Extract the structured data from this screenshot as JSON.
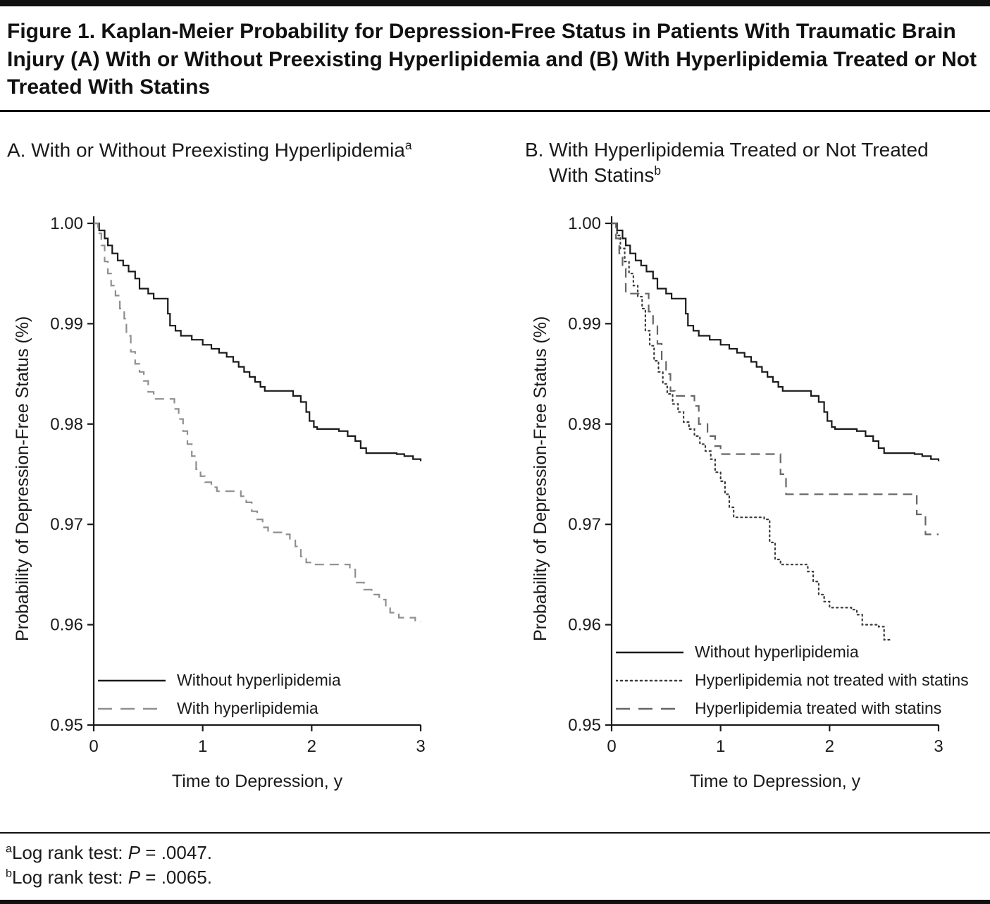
{
  "figure": {
    "title": "Figure 1. Kaplan-Meier Probability for Depression-Free Status in Patients With Traumatic Brain Injury (A) With or Without Preexisting Hyperlipidemia and (B) With Hyperlipidemia Treated or Not Treated With Statins"
  },
  "colors": {
    "ink": "#1a1a1a"
  },
  "chart_data": [
    {
      "type": "line",
      "subtype": "kaplan-meier-step",
      "title": "A. With or Without Preexisting Hyperlipidemia",
      "heading_line1": "A. With or Without Preexisting Hyperlipidemia",
      "heading_sup": "a",
      "xlabel": "Time to Depression, y",
      "ylabel": "Probability of Depression-Free Status (%)",
      "xlim": [
        0,
        3
      ],
      "ylim": [
        0.95,
        1.0
      ],
      "xticks": [
        0,
        1,
        2,
        3
      ],
      "yticks": [
        0.95,
        0.96,
        0.97,
        0.98,
        0.99,
        1.0
      ],
      "grid": false,
      "legend_position": "lower-left-inside",
      "series": [
        {
          "name": "Without hyperlipidemia",
          "style": "solid",
          "color": "#1a1a1a",
          "points": [
            [
              0,
              1.0
            ],
            [
              0.05,
              0.9993
            ],
            [
              0.1,
              0.9985
            ],
            [
              0.13,
              0.9978
            ],
            [
              0.17,
              0.997
            ],
            [
              0.22,
              0.9963
            ],
            [
              0.27,
              0.9958
            ],
            [
              0.32,
              0.9952
            ],
            [
              0.38,
              0.9945
            ],
            [
              0.42,
              0.9935
            ],
            [
              0.5,
              0.993
            ],
            [
              0.55,
              0.9925
            ],
            [
              0.65,
              0.9925
            ],
            [
              0.68,
              0.991
            ],
            [
              0.7,
              0.9898
            ],
            [
              0.75,
              0.9893
            ],
            [
              0.8,
              0.9888
            ],
            [
              0.9,
              0.9884
            ],
            [
              1.0,
              0.9879
            ],
            [
              1.08,
              0.9875
            ],
            [
              1.15,
              0.9871
            ],
            [
              1.22,
              0.9867
            ],
            [
              1.28,
              0.9862
            ],
            [
              1.33,
              0.9857
            ],
            [
              1.38,
              0.9852
            ],
            [
              1.43,
              0.9847
            ],
            [
              1.48,
              0.9842
            ],
            [
              1.53,
              0.9837
            ],
            [
              1.57,
              0.9833
            ],
            [
              1.78,
              0.9833
            ],
            [
              1.83,
              0.9828
            ],
            [
              1.9,
              0.9822
            ],
            [
              1.95,
              0.9812
            ],
            [
              1.98,
              0.9803
            ],
            [
              2.02,
              0.9797
            ],
            [
              2.05,
              0.9795
            ],
            [
              2.25,
              0.9793
            ],
            [
              2.33,
              0.9788
            ],
            [
              2.4,
              0.9783
            ],
            [
              2.45,
              0.9776
            ],
            [
              2.5,
              0.9771
            ],
            [
              2.78,
              0.977
            ],
            [
              2.85,
              0.9768
            ],
            [
              2.93,
              0.9765
            ],
            [
              3.0,
              0.9763
            ]
          ]
        },
        {
          "name": "With hyperlipidemia",
          "style": "dashed",
          "color": "#8f8f8f",
          "points": [
            [
              0,
              1.0
            ],
            [
              0.04,
              0.999
            ],
            [
              0.07,
              0.9978
            ],
            [
              0.1,
              0.9962
            ],
            [
              0.13,
              0.995
            ],
            [
              0.16,
              0.9938
            ],
            [
              0.2,
              0.9928
            ],
            [
              0.24,
              0.9915
            ],
            [
              0.28,
              0.9905
            ],
            [
              0.3,
              0.9888
            ],
            [
              0.34,
              0.9872
            ],
            [
              0.38,
              0.986
            ],
            [
              0.42,
              0.9852
            ],
            [
              0.46,
              0.9843
            ],
            [
              0.5,
              0.9832
            ],
            [
              0.55,
              0.9825
            ],
            [
              0.7,
              0.9825
            ],
            [
              0.74,
              0.9815
            ],
            [
              0.78,
              0.9805
            ],
            [
              0.82,
              0.9793
            ],
            [
              0.86,
              0.978
            ],
            [
              0.9,
              0.9768
            ],
            [
              0.94,
              0.9755
            ],
            [
              0.98,
              0.9748
            ],
            [
              1.02,
              0.9742
            ],
            [
              1.08,
              0.9737
            ],
            [
              1.13,
              0.9733
            ],
            [
              1.3,
              0.9733
            ],
            [
              1.35,
              0.9728
            ],
            [
              1.4,
              0.9722
            ],
            [
              1.45,
              0.9713
            ],
            [
              1.5,
              0.9705
            ],
            [
              1.55,
              0.9697
            ],
            [
              1.6,
              0.9692
            ],
            [
              1.75,
              0.969
            ],
            [
              1.8,
              0.9685
            ],
            [
              1.85,
              0.9678
            ],
            [
              1.9,
              0.9668
            ],
            [
              1.95,
              0.9662
            ],
            [
              2.0,
              0.966
            ],
            [
              2.3,
              0.966
            ],
            [
              2.35,
              0.9655
            ],
            [
              2.4,
              0.9642
            ],
            [
              2.48,
              0.9635
            ],
            [
              2.55,
              0.963
            ],
            [
              2.62,
              0.9625
            ],
            [
              2.68,
              0.9618
            ],
            [
              2.72,
              0.9612
            ],
            [
              2.8,
              0.9607
            ],
            [
              2.95,
              0.9603
            ],
            [
              3.0,
              0.9603
            ]
          ]
        }
      ]
    },
    {
      "type": "line",
      "subtype": "kaplan-meier-step",
      "title": "B. With Hyperlipidemia Treated or Not Treated With Statins",
      "heading_line1": "B. With Hyperlipidemia Treated or Not Treated",
      "heading_line2": "With Statins",
      "heading_sup": "b",
      "xlabel": "Time to Depression, y",
      "ylabel": "Probability of Depression-Free Status (%)",
      "xlim": [
        0,
        3
      ],
      "ylim": [
        0.95,
        1.0
      ],
      "xticks": [
        0,
        1,
        2,
        3
      ],
      "yticks": [
        0.95,
        0.96,
        0.97,
        0.98,
        0.99,
        1.0
      ],
      "grid": false,
      "legend_position": "lower-left-inside",
      "series": [
        {
          "name": "Without hyperlipidemia",
          "style": "solid",
          "color": "#1a1a1a",
          "points": [
            [
              0,
              1.0
            ],
            [
              0.05,
              0.9993
            ],
            [
              0.1,
              0.9985
            ],
            [
              0.13,
              0.9978
            ],
            [
              0.17,
              0.997
            ],
            [
              0.22,
              0.9963
            ],
            [
              0.27,
              0.9958
            ],
            [
              0.32,
              0.9952
            ],
            [
              0.38,
              0.9945
            ],
            [
              0.42,
              0.9935
            ],
            [
              0.5,
              0.993
            ],
            [
              0.55,
              0.9925
            ],
            [
              0.65,
              0.9925
            ],
            [
              0.68,
              0.991
            ],
            [
              0.7,
              0.9898
            ],
            [
              0.75,
              0.9893
            ],
            [
              0.8,
              0.9888
            ],
            [
              0.9,
              0.9884
            ],
            [
              1.0,
              0.9879
            ],
            [
              1.08,
              0.9875
            ],
            [
              1.15,
              0.9871
            ],
            [
              1.22,
              0.9867
            ],
            [
              1.28,
              0.9862
            ],
            [
              1.33,
              0.9857
            ],
            [
              1.38,
              0.9852
            ],
            [
              1.43,
              0.9847
            ],
            [
              1.48,
              0.9842
            ],
            [
              1.53,
              0.9837
            ],
            [
              1.57,
              0.9833
            ],
            [
              1.78,
              0.9833
            ],
            [
              1.83,
              0.9828
            ],
            [
              1.9,
              0.9822
            ],
            [
              1.95,
              0.9812
            ],
            [
              1.98,
              0.9803
            ],
            [
              2.02,
              0.9797
            ],
            [
              2.05,
              0.9795
            ],
            [
              2.25,
              0.9793
            ],
            [
              2.33,
              0.9788
            ],
            [
              2.4,
              0.9783
            ],
            [
              2.45,
              0.9776
            ],
            [
              2.5,
              0.9771
            ],
            [
              2.78,
              0.977
            ],
            [
              2.85,
              0.9768
            ],
            [
              2.93,
              0.9765
            ],
            [
              3.0,
              0.9763
            ]
          ]
        },
        {
          "name": "Hyperlipidemia not treated with statins",
          "style": "dotted",
          "color": "#3a3a3a",
          "points": [
            [
              0,
              1.0
            ],
            [
              0.05,
              0.9988
            ],
            [
              0.08,
              0.9975
            ],
            [
              0.12,
              0.9962
            ],
            [
              0.16,
              0.995
            ],
            [
              0.2,
              0.9938
            ],
            [
              0.24,
              0.9927
            ],
            [
              0.28,
              0.9915
            ],
            [
              0.31,
              0.9893
            ],
            [
              0.35,
              0.9878
            ],
            [
              0.39,
              0.9863
            ],
            [
              0.43,
              0.9852
            ],
            [
              0.47,
              0.984
            ],
            [
              0.51,
              0.983
            ],
            [
              0.56,
              0.982
            ],
            [
              0.61,
              0.9812
            ],
            [
              0.66,
              0.9802
            ],
            [
              0.71,
              0.9795
            ],
            [
              0.76,
              0.9788
            ],
            [
              0.81,
              0.978
            ],
            [
              0.86,
              0.9773
            ],
            [
              0.91,
              0.9765
            ],
            [
              0.95,
              0.9752
            ],
            [
              1.0,
              0.9743
            ],
            [
              1.04,
              0.973
            ],
            [
              1.08,
              0.9717
            ],
            [
              1.12,
              0.9707
            ],
            [
              1.4,
              0.9705
            ],
            [
              1.45,
              0.9682
            ],
            [
              1.5,
              0.9665
            ],
            [
              1.55,
              0.966
            ],
            [
              1.75,
              0.966
            ],
            [
              1.8,
              0.9653
            ],
            [
              1.85,
              0.9643
            ],
            [
              1.9,
              0.963
            ],
            [
              1.95,
              0.9623
            ],
            [
              2.0,
              0.9617
            ],
            [
              2.2,
              0.9615
            ],
            [
              2.25,
              0.961
            ],
            [
              2.3,
              0.96
            ],
            [
              2.45,
              0.9598
            ],
            [
              2.5,
              0.9585
            ],
            [
              2.55,
              0.9583
            ]
          ]
        },
        {
          "name": "Hyperlipidemia treated with statins",
          "style": "dashed",
          "color": "#666666",
          "points": [
            [
              0,
              1.0
            ],
            [
              0.04,
              0.9985
            ],
            [
              0.07,
              0.997
            ],
            [
              0.1,
              0.9955
            ],
            [
              0.13,
              0.993
            ],
            [
              0.3,
              0.993
            ],
            [
              0.34,
              0.9912
            ],
            [
              0.38,
              0.99
            ],
            [
              0.42,
              0.988
            ],
            [
              0.46,
              0.9862
            ],
            [
              0.5,
              0.985
            ],
            [
              0.54,
              0.9833
            ],
            [
              0.58,
              0.9828
            ],
            [
              0.72,
              0.9828
            ],
            [
              0.76,
              0.9818
            ],
            [
              0.8,
              0.98
            ],
            [
              0.88,
              0.9788
            ],
            [
              0.95,
              0.9778
            ],
            [
              1.0,
              0.977
            ],
            [
              1.5,
              0.977
            ],
            [
              1.55,
              0.975
            ],
            [
              1.6,
              0.973
            ],
            [
              2.75,
              0.973
            ],
            [
              2.8,
              0.971
            ],
            [
              2.88,
              0.969
            ],
            [
              3.0,
              0.969
            ]
          ]
        }
      ]
    }
  ],
  "footnotes": {
    "a": {
      "sup": "a",
      "text": "Log rank test: ",
      "stat_symbol": "P",
      "value": " = .0047."
    },
    "b": {
      "sup": "b",
      "text": "Log rank test: ",
      "stat_symbol": "P",
      "value": " = .0065."
    }
  }
}
